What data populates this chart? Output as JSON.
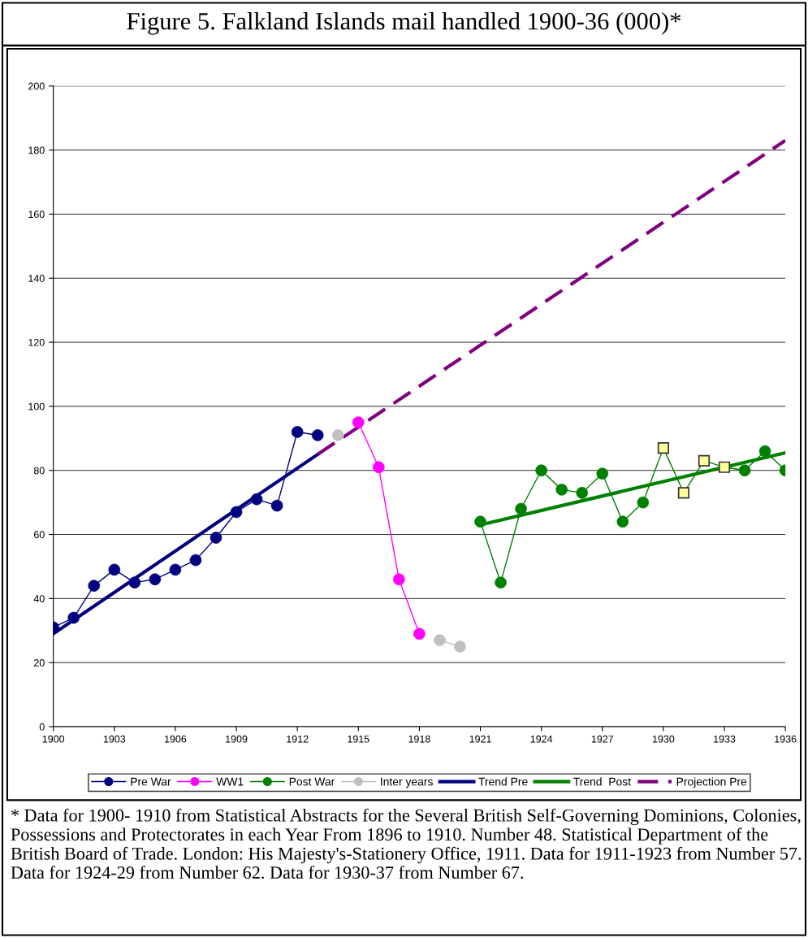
{
  "chart_data": {
    "type": "line",
    "title": "Figure 5. Falkland Islands mail handled 1900-36 (000)*",
    "annotations": [
      "* Data for 1900- 1910 from Statistical Abstracts for the Several British Self-Governing Dominions, Colonies, Possessions and Protectorates in each Year From 1896 to 1910. Number 48. Statistical Department of the British Board of Trade. London: His Majesty's-Stationery Office, 1911. Data for 1911-1923 from Number 57. Data for 1924-29 from Number 62. Data for 1930-37 from Number 67."
    ],
    "series": [
      {
        "name": "Pre War",
        "color": "#000080",
        "marker": "circle",
        "x": [
          1900,
          1901,
          1902,
          1903,
          1904,
          1905,
          1906,
          1907,
          1908,
          1909,
          1910,
          1911,
          1912,
          1913
        ],
        "values": [
          31,
          34,
          44,
          49,
          45,
          46,
          49,
          52,
          59,
          67,
          71,
          69,
          92,
          91
        ]
      },
      {
        "name": "WW1",
        "color": "#ff00ff",
        "marker": "circle",
        "x": [
          1915,
          1916,
          1917,
          1918
        ],
        "values": [
          95,
          81,
          46,
          29
        ]
      },
      {
        "name": "Post War",
        "color": "#008000",
        "marker": "circle",
        "x": [
          1921,
          1922,
          1923,
          1924,
          1925,
          1926,
          1927,
          1928,
          1929,
          1930,
          1931,
          1932,
          1933,
          1934,
          1935,
          1936
        ],
        "values": [
          64,
          45,
          68,
          80,
          74,
          73,
          79,
          64,
          70,
          87,
          73,
          83,
          81,
          80,
          86,
          80
        ],
        "colors": [
          "#008000",
          "#008000",
          "#008000",
          "#008000",
          "#008000",
          "#008000",
          "#008000",
          "#008000",
          "#008000",
          "#ffff99",
          "#ffff99",
          "#ffff99",
          "#ffff99",
          "#008000",
          "#008000",
          "#008000"
        ]
      },
      {
        "name": "Inter years",
        "color": "#c0c0c0",
        "marker": "circle",
        "x": [
          1914,
          1915,
          1916,
          1917,
          1918,
          1919,
          1920
        ],
        "values": [
          91,
          null,
          null,
          null,
          null,
          27,
          25
        ]
      },
      {
        "name": "Trend Pre",
        "color": "#000080",
        "marker": "none",
        "x": [
          1900,
          1913
        ],
        "values": [
          29,
          85
        ]
      },
      {
        "name": "Trend  Post",
        "color": "#008000",
        "marker": "none",
        "x": [
          1921,
          1936
        ],
        "values": [
          63,
          85.5
        ]
      },
      {
        "name": "Projection Pre",
        "color": "#800080",
        "marker": "none",
        "line_style": "dashed",
        "x": [
          1913,
          1936
        ],
        "values": [
          85,
          183
        ]
      }
    ],
    "xlim": [
      1900,
      1936
    ],
    "xticks": [
      1900,
      1903,
      1906,
      1909,
      1912,
      1915,
      1918,
      1921,
      1924,
      1927,
      1930,
      1933,
      1936
    ],
    "ylim": [
      0,
      200
    ],
    "yticks": [
      0,
      20,
      40,
      60,
      80,
      100,
      120,
      140,
      160,
      180,
      200
    ],
    "grid": "y",
    "legend": "bottom"
  }
}
